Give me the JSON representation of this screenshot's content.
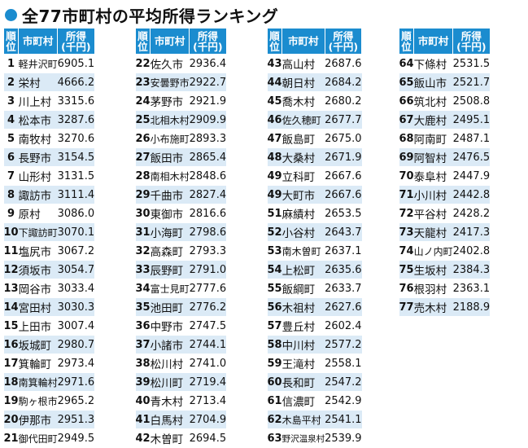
{
  "title": "全77市町村の平均所得ランキング",
  "headers": {
    "rank": "順位",
    "name": "市町村",
    "income_line1": "所得",
    "income_line2": "(千円)"
  },
  "colors": {
    "header_bg": "#1b8ccf",
    "stripe": "#dbeaf6",
    "bullet": "#1b8ccf"
  },
  "columns": [
    [
      {
        "rank": "1",
        "name": "軽井沢町",
        "income": "6905.1"
      },
      {
        "rank": "2",
        "name": "栄村",
        "income": "4666.2"
      },
      {
        "rank": "3",
        "name": "川上村",
        "income": "3315.6"
      },
      {
        "rank": "4",
        "name": "松本市",
        "income": "3287.6"
      },
      {
        "rank": "5",
        "name": "南牧村",
        "income": "3270.6"
      },
      {
        "rank": "6",
        "name": "長野市",
        "income": "3154.5"
      },
      {
        "rank": "7",
        "name": "山形村",
        "income": "3131.5"
      },
      {
        "rank": "8",
        "name": "諏訪市",
        "income": "3111.4"
      },
      {
        "rank": "9",
        "name": "原村",
        "income": "3086.0"
      },
      {
        "rank": "10",
        "name": "下諏訪町",
        "income": "3070.1"
      },
      {
        "rank": "11",
        "name": "塩尻市",
        "income": "3067.2"
      },
      {
        "rank": "12",
        "name": "須坂市",
        "income": "3054.7"
      },
      {
        "rank": "13",
        "name": "岡谷市",
        "income": "3033.4"
      },
      {
        "rank": "14",
        "name": "宮田村",
        "income": "3030.3"
      },
      {
        "rank": "15",
        "name": "上田市",
        "income": "3007.4"
      },
      {
        "rank": "16",
        "name": "坂城町",
        "income": "2980.7"
      },
      {
        "rank": "17",
        "name": "箕輪町",
        "income": "2973.4"
      },
      {
        "rank": "18",
        "name": "南箕輪村",
        "income": "2971.6"
      },
      {
        "rank": "19",
        "name": "駒ヶ根市",
        "income": "2965.2"
      },
      {
        "rank": "20",
        "name": "伊那市",
        "income": "2951.3"
      },
      {
        "rank": "21",
        "name": "御代田町",
        "income": "2949.5"
      }
    ],
    [
      {
        "rank": "22",
        "name": "佐久市",
        "income": "2936.4"
      },
      {
        "rank": "23",
        "name": "安曇野市",
        "income": "2922.7"
      },
      {
        "rank": "24",
        "name": "茅野市",
        "income": "2921.9"
      },
      {
        "rank": "25",
        "name": "北相木村",
        "income": "2909.9"
      },
      {
        "rank": "26",
        "name": "小布施町",
        "income": "2893.3"
      },
      {
        "rank": "27",
        "name": "飯田市",
        "income": "2865.4"
      },
      {
        "rank": "28",
        "name": "南相木村",
        "income": "2848.6"
      },
      {
        "rank": "29",
        "name": "千曲市",
        "income": "2827.4"
      },
      {
        "rank": "30",
        "name": "東御市",
        "income": "2816.6"
      },
      {
        "rank": "31",
        "name": "小海町",
        "income": "2798.6"
      },
      {
        "rank": "32",
        "name": "高森町",
        "income": "2793.3"
      },
      {
        "rank": "33",
        "name": "辰野町",
        "income": "2791.0"
      },
      {
        "rank": "34",
        "name": "富士見町",
        "income": "2777.6"
      },
      {
        "rank": "35",
        "name": "池田町",
        "income": "2776.2"
      },
      {
        "rank": "36",
        "name": "中野市",
        "income": "2747.5"
      },
      {
        "rank": "37",
        "name": "小諸市",
        "income": "2744.1"
      },
      {
        "rank": "38",
        "name": "松川村",
        "income": "2741.0"
      },
      {
        "rank": "39",
        "name": "松川町",
        "income": "2719.4"
      },
      {
        "rank": "40",
        "name": "青木村",
        "income": "2713.4"
      },
      {
        "rank": "41",
        "name": "白馬村",
        "income": "2704.9"
      },
      {
        "rank": "42",
        "name": "木曽町",
        "income": "2694.5"
      }
    ],
    [
      {
        "rank": "43",
        "name": "高山村",
        "income": "2687.6"
      },
      {
        "rank": "44",
        "name": "朝日村",
        "income": "2684.2"
      },
      {
        "rank": "45",
        "name": "喬木村",
        "income": "2680.2"
      },
      {
        "rank": "46",
        "name": "佐久穂町",
        "income": "2677.7"
      },
      {
        "rank": "47",
        "name": "飯島町",
        "income": "2675.0"
      },
      {
        "rank": "48",
        "name": "大桑村",
        "income": "2671.9"
      },
      {
        "rank": "49",
        "name": "立科町",
        "income": "2667.6"
      },
      {
        "rank": "49",
        "name": "大町市",
        "income": "2667.6"
      },
      {
        "rank": "51",
        "name": "麻績村",
        "income": "2653.5"
      },
      {
        "rank": "52",
        "name": "小谷村",
        "income": "2643.7"
      },
      {
        "rank": "53",
        "name": "南木曽町",
        "income": "2637.1"
      },
      {
        "rank": "54",
        "name": "上松町",
        "income": "2635.6"
      },
      {
        "rank": "55",
        "name": "飯綱町",
        "income": "2633.7"
      },
      {
        "rank": "56",
        "name": "木祖村",
        "income": "2627.6"
      },
      {
        "rank": "57",
        "name": "豊丘村",
        "income": "2602.4"
      },
      {
        "rank": "58",
        "name": "中川村",
        "income": "2577.2"
      },
      {
        "rank": "59",
        "name": "王滝村",
        "income": "2558.1"
      },
      {
        "rank": "60",
        "name": "長和町",
        "income": "2547.2"
      },
      {
        "rank": "61",
        "name": "信濃町",
        "income": "2542.9"
      },
      {
        "rank": "62",
        "name": "木島平村",
        "income": "2541.1"
      },
      {
        "rank": "63",
        "name": "野沢温泉村",
        "income": "2539.9"
      }
    ],
    [
      {
        "rank": "64",
        "name": "下條村",
        "income": "2531.5"
      },
      {
        "rank": "65",
        "name": "飯山市",
        "income": "2521.7"
      },
      {
        "rank": "66",
        "name": "筑北村",
        "income": "2508.8"
      },
      {
        "rank": "67",
        "name": "大鹿村",
        "income": "2495.1"
      },
      {
        "rank": "68",
        "name": "阿南町",
        "income": "2487.1"
      },
      {
        "rank": "69",
        "name": "阿智村",
        "income": "2476.5"
      },
      {
        "rank": "70",
        "name": "泰阜村",
        "income": "2447.9"
      },
      {
        "rank": "71",
        "name": "小川村",
        "income": "2442.8"
      },
      {
        "rank": "72",
        "name": "平谷村",
        "income": "2428.2"
      },
      {
        "rank": "73",
        "name": "天龍村",
        "income": "2417.3"
      },
      {
        "rank": "74",
        "name": "山ノ内町",
        "income": "2402.8"
      },
      {
        "rank": "75",
        "name": "生坂村",
        "income": "2384.3"
      },
      {
        "rank": "76",
        "name": "根羽村",
        "income": "2363.1"
      },
      {
        "rank": "77",
        "name": "売木村",
        "income": "2188.9"
      }
    ]
  ]
}
